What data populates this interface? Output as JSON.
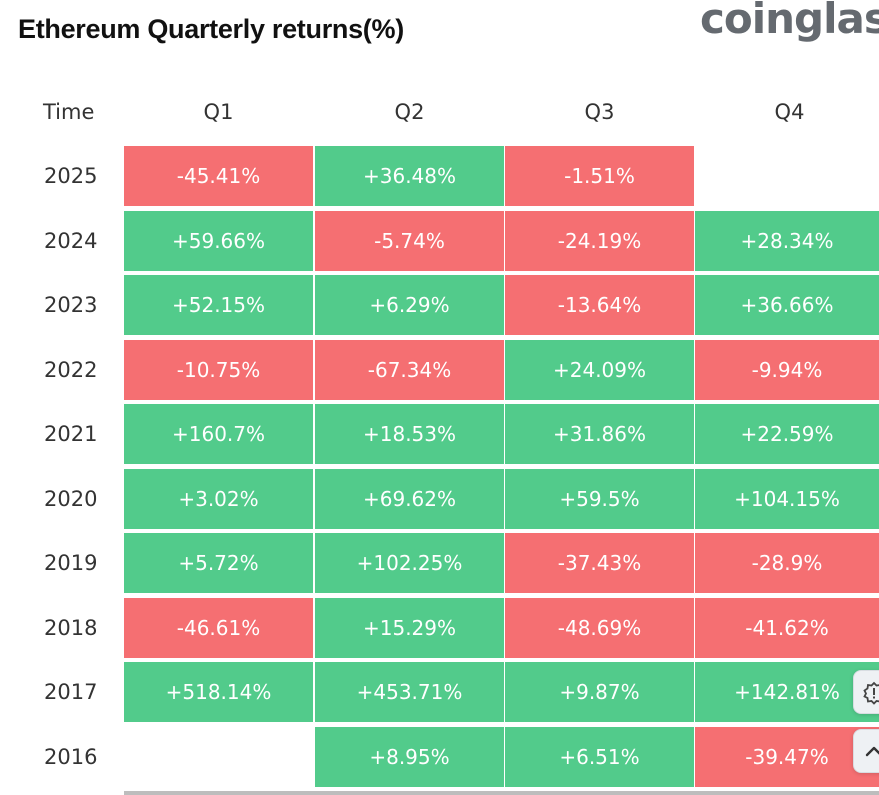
{
  "chart_data": {
    "type": "heatmap",
    "title": "Ethereum Quarterly returns(%)",
    "row_header": "Time",
    "columns": [
      "Q1",
      "Q2",
      "Q3",
      "Q4"
    ],
    "rows": [
      {
        "year": "2025",
        "values": [
          "-45.41%",
          "+36.48%",
          "-1.51%",
          ""
        ]
      },
      {
        "year": "2024",
        "values": [
          "+59.66%",
          "-5.74%",
          "-24.19%",
          "+28.34%"
        ]
      },
      {
        "year": "2023",
        "values": [
          "+52.15%",
          "+6.29%",
          "-13.64%",
          "+36.66%"
        ]
      },
      {
        "year": "2022",
        "values": [
          "-10.75%",
          "-67.34%",
          "+24.09%",
          "-9.94%"
        ]
      },
      {
        "year": "2021",
        "values": [
          "+160.7%",
          "+18.53%",
          "+31.86%",
          "+22.59%"
        ]
      },
      {
        "year": "2020",
        "values": [
          "+3.02%",
          "+69.62%",
          "+59.5%",
          "+104.15%"
        ]
      },
      {
        "year": "2019",
        "values": [
          "+5.72%",
          "+102.25%",
          "-37.43%",
          "-28.9%"
        ]
      },
      {
        "year": "2018",
        "values": [
          "-46.61%",
          "+15.29%",
          "-48.69%",
          "-41.62%"
        ]
      },
      {
        "year": "2017",
        "values": [
          "+518.14%",
          "+453.71%",
          "+9.87%",
          "+142.81%"
        ]
      },
      {
        "year": "2016",
        "values": [
          "",
          "+8.95%",
          "+6.51%",
          "-39.47%"
        ]
      }
    ],
    "colors": {
      "positive": "#52cb8b",
      "negative": "#f56f72"
    }
  },
  "brand": "coinglass",
  "icons": {
    "feedback": "feedback-icon",
    "scroll_top": "chevron-up-icon"
  }
}
